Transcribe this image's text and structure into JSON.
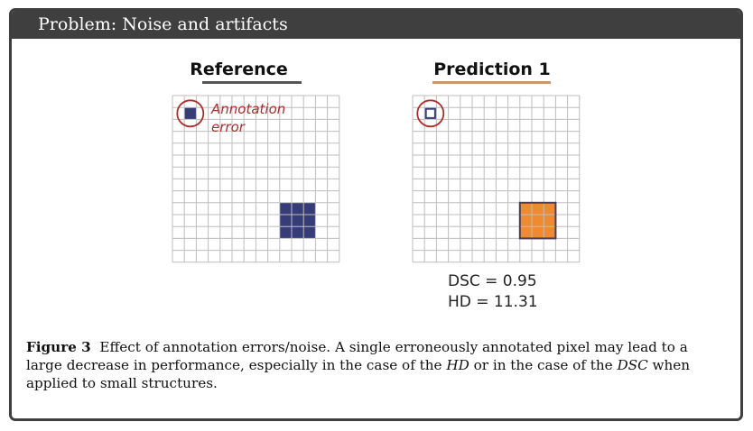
{
  "header": {
    "title": "Problem: Noise and artifacts"
  },
  "colors": {
    "reference_fill": "#353c78",
    "prediction_fill": "#ef8a2e",
    "prediction_border": "#4a3c5a",
    "circle": "#b22a2a",
    "grid_line": "#bdbdbd",
    "reference_underline": "#555555",
    "prediction_underline": "#c9976a"
  },
  "panels": [
    {
      "title": "Reference",
      "grid_size": 14,
      "marked_cells": [
        [
          1,
          1
        ],
        [
          9,
          9
        ],
        [
          10,
          9
        ],
        [
          11,
          9
        ],
        [
          9,
          10
        ],
        [
          10,
          10
        ],
        [
          11,
          10
        ],
        [
          9,
          11
        ],
        [
          10,
          11
        ],
        [
          11,
          11
        ]
      ],
      "annotation": [
        "Annotation",
        "error"
      ]
    },
    {
      "title": "Prediction 1",
      "grid_size": 14,
      "marked_cells": [
        [
          9,
          9
        ],
        [
          10,
          9
        ],
        [
          11,
          9
        ],
        [
          9,
          10
        ],
        [
          10,
          10
        ],
        [
          11,
          10
        ],
        [
          9,
          11
        ],
        [
          10,
          11
        ],
        [
          11,
          11
        ]
      ],
      "outlined_cell": [
        1,
        1
      ],
      "metrics": [
        "DSC = 0.95",
        "HD = 11.31"
      ]
    }
  ],
  "caption": {
    "label": "Figure 3",
    "text1": "Effect of annotation errors/noise. A single erroneously annotated pixel may lead to a large decrease in performance, especially in the case of the ",
    "hd": "HD",
    "text2": " or in the case of the ",
    "dsc": "DSC",
    "text3": " when applied to small structures."
  }
}
